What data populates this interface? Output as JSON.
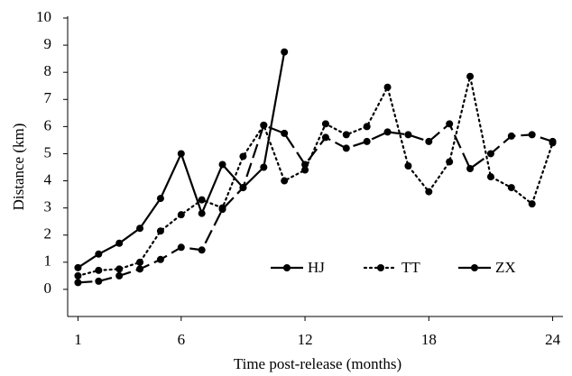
{
  "chart_data": {
    "type": "line",
    "xlabel": "Time post-release (months)",
    "ylabel": "Distance (km)",
    "x": [
      1,
      2,
      3,
      4,
      5,
      6,
      7,
      8,
      9,
      10,
      11,
      12,
      13,
      14,
      15,
      16,
      17,
      18,
      19,
      20,
      21,
      22,
      23,
      24
    ],
    "series": [
      {
        "name": "HJ",
        "color": "#000000",
        "dash": "solid",
        "values": [
          0.8,
          1.3,
          1.7,
          2.25,
          3.35,
          5.0,
          2.8,
          4.6,
          3.75,
          4.5,
          8.75,
          null,
          null,
          null,
          null,
          null,
          null,
          null,
          null,
          null,
          null,
          null,
          null,
          null
        ]
      },
      {
        "name": "TT",
        "color": "#000000",
        "dash": "dotted",
        "values": [
          0.5,
          0.7,
          0.75,
          1.0,
          2.15,
          2.75,
          3.3,
          3.0,
          4.9,
          6.05,
          4.0,
          4.4,
          6.1,
          5.7,
          6.0,
          7.45,
          4.55,
          3.6,
          4.7,
          7.85,
          4.15,
          3.75,
          3.15,
          5.4
        ]
      },
      {
        "name": "ZX",
        "color": "#000000",
        "dash": "long-dash",
        "values": [
          0.25,
          0.3,
          0.5,
          0.75,
          1.1,
          1.55,
          1.45,
          2.95,
          3.75,
          6.05,
          5.75,
          4.6,
          5.6,
          5.2,
          5.45,
          5.8,
          5.7,
          5.45,
          6.1,
          4.45,
          5.0,
          5.65,
          5.7,
          5.45
        ]
      }
    ],
    "xlim": [
      0.5,
      24.5
    ],
    "xticks": [
      1,
      6,
      12,
      18,
      24
    ],
    "ylim": [
      -1,
      10
    ],
    "yticks": [
      0,
      1,
      2,
      3,
      4,
      5,
      6,
      7,
      8,
      9,
      10
    ],
    "grid": false,
    "legend": "bottom-right"
  }
}
